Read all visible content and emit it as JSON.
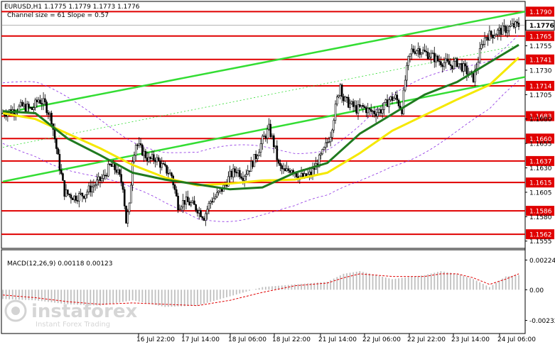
{
  "header": {
    "symbol_line": "EURUSD,H1  1.1775 1.1779 1.1773 1.1776",
    "channel_line": "Channel size = 61 Slope = 0.57"
  },
  "macd_label": "MACD(12,26,9) 0.00118 0.00123",
  "watermark": {
    "brand": "instaforex",
    "tagline": "Instant Forex Trading"
  },
  "colors": {
    "level_line": "#e00000",
    "channel": "#33dd33",
    "ma_fast": "#1f7a1f",
    "ma_slow": "#f5e800",
    "bollinger": "#8a2be2",
    "macd_signal": "#e00000",
    "macd_hist": "#c0c0c0",
    "candle": "#000000"
  },
  "chart_data": {
    "type": "candlestick",
    "symbol": "EURUSD",
    "timeframe": "H1",
    "ohlc_last": {
      "open": 1.1775,
      "high": 1.1779,
      "low": 1.1773,
      "close": 1.1776
    },
    "ylim": [
      1.1549,
      1.1799
    ],
    "y_ticks": [
      "1.1775",
      "1.1755",
      "1.1730",
      "1.1705",
      "1.1680",
      "1.1655",
      "1.1630",
      "1.1605",
      "1.1580",
      "1.1555"
    ],
    "x_ticks": [
      "16 Jul 22:00",
      "17 Jul 14:00",
      "18 Jul 06:00",
      "18 Jul 22:00",
      "21 Jul 14:00",
      "22 Jul 06:00",
      "22 Jul 22:00",
      "23 Jul 14:00",
      "24 Jul 06:00"
    ],
    "current_price": "1.1776",
    "levels": [
      "1.1790",
      "1.1765",
      "1.1741",
      "1.1714",
      "1.1683",
      "1.1660",
      "1.1637",
      "1.1615",
      "1.1586",
      "1.1562"
    ],
    "close_path": [
      [
        0,
        1.1686
      ],
      [
        6,
        1.1689
      ],
      [
        12,
        1.1693
      ],
      [
        18,
        1.169
      ],
      [
        22,
        1.17
      ],
      [
        26,
        1.1695
      ],
      [
        30,
        1.168
      ],
      [
        34,
        1.164
      ],
      [
        38,
        1.1605
      ],
      [
        44,
        1.16
      ],
      [
        50,
        1.1603
      ],
      [
        56,
        1.1612
      ],
      [
        62,
        1.162
      ],
      [
        66,
        1.1632
      ],
      [
        70,
        1.1628
      ],
      [
        74,
        1.1612
      ],
      [
        76,
        1.1575
      ],
      [
        78,
        1.159
      ],
      [
        80,
        1.164
      ],
      [
        82,
        1.1655
      ],
      [
        86,
        1.1647
      ],
      [
        90,
        1.1638
      ],
      [
        94,
        1.164
      ],
      [
        98,
        1.1632
      ],
      [
        104,
        1.1622
      ],
      [
        108,
        1.1592
      ],
      [
        112,
        1.1596
      ],
      [
        116,
        1.1593
      ],
      [
        120,
        1.1588
      ],
      [
        124,
        1.158
      ],
      [
        128,
        1.1596
      ],
      [
        132,
        1.1602
      ],
      [
        136,
        1.161
      ],
      [
        140,
        1.1622
      ],
      [
        144,
        1.1628
      ],
      [
        148,
        1.1622
      ],
      [
        152,
        1.163
      ],
      [
        156,
        1.1642
      ],
      [
        160,
        1.1658
      ],
      [
        164,
        1.167
      ],
      [
        166,
        1.166
      ],
      [
        168,
        1.1648
      ],
      [
        170,
        1.1632
      ],
      [
        174,
        1.1625
      ],
      [
        178,
        1.163
      ],
      [
        182,
        1.1622
      ],
      [
        186,
        1.162
      ],
      [
        190,
        1.1624
      ],
      [
        194,
        1.1635
      ],
      [
        198,
        1.1648
      ],
      [
        202,
        1.1665
      ],
      [
        206,
        1.17
      ],
      [
        208,
        1.1716
      ],
      [
        210,
        1.17
      ],
      [
        214,
        1.1695
      ],
      [
        218,
        1.169
      ],
      [
        222,
        1.1692
      ],
      [
        226,
        1.1688
      ],
      [
        230,
        1.1687
      ],
      [
        234,
        1.169
      ],
      [
        238,
        1.17
      ],
      [
        242,
        1.1702
      ],
      [
        246,
        1.169
      ],
      [
        248,
        1.172
      ],
      [
        250,
        1.174
      ],
      [
        252,
        1.175
      ],
      [
        256,
        1.1752
      ],
      [
        260,
        1.1748
      ],
      [
        264,
        1.1745
      ],
      [
        268,
        1.174
      ],
      [
        272,
        1.1738
      ],
      [
        276,
        1.1735
      ],
      [
        280,
        1.1738
      ],
      [
        284,
        1.1732
      ],
      [
        288,
        1.1725
      ],
      [
        290,
        1.1722
      ],
      [
        292,
        1.1733
      ],
      [
        294,
        1.1748
      ],
      [
        296,
        1.176
      ],
      [
        298,
        1.1765
      ],
      [
        302,
        1.1767
      ],
      [
        306,
        1.177
      ],
      [
        310,
        1.1772
      ],
      [
        314,
        1.1775
      ],
      [
        318,
        1.1776
      ]
    ],
    "channel": {
      "lower": [
        [
          0,
          1.1616
        ],
        [
          318,
          1.1722
        ]
      ],
      "upper": [
        [
          0,
          1.1686
        ],
        [
          318,
          1.1789
        ]
      ]
    },
    "series": [
      {
        "name": "",
        "values": [
          [
            0,
            1.1688
          ],
          [
            20,
            1.1686
          ],
          [
            40,
            1.166
          ],
          [
            60,
            1.1643
          ],
          [
            80,
            1.1625
          ],
          [
            100,
            1.1618
          ],
          [
            120,
            1.1613
          ],
          [
            140,
            1.1608
          ],
          [
            160,
            1.161
          ],
          [
            180,
            1.1625
          ],
          [
            200,
            1.1635
          ],
          [
            220,
            1.1665
          ],
          [
            240,
            1.1685
          ],
          [
            260,
            1.1705
          ],
          [
            280,
            1.1718
          ],
          [
            300,
            1.1738
          ],
          [
            318,
            1.1756
          ]
        ]
      },
      {
        "name": "",
        "values": [
          [
            0,
            1.1686
          ],
          [
            20,
            1.168
          ],
          [
            40,
            1.1665
          ],
          [
            60,
            1.165
          ],
          [
            80,
            1.1633
          ],
          [
            100,
            1.162
          ],
          [
            120,
            1.1612
          ],
          [
            140,
            1.1614
          ],
          [
            160,
            1.1617
          ],
          [
            180,
            1.1618
          ],
          [
            200,
            1.1625
          ],
          [
            220,
            1.1645
          ],
          [
            240,
            1.1668
          ],
          [
            260,
            1.1684
          ],
          [
            280,
            1.17
          ],
          [
            300,
            1.1715
          ],
          [
            318,
            1.1743
          ]
        ]
      }
    ],
    "macd": {
      "ylim": [
        -0.0032,
        0.0028
      ],
      "y_ticks": [
        "0.00224",
        "0.00",
        "-0.00232"
      ],
      "hist": [
        [
          0,
          -0.0007
        ],
        [
          20,
          -0.0008
        ],
        [
          40,
          -0.0011
        ],
        [
          60,
          -0.0012
        ],
        [
          80,
          -0.0008
        ],
        [
          100,
          -0.0013
        ],
        [
          120,
          -0.0012
        ],
        [
          140,
          -0.0005
        ],
        [
          160,
          0.0002
        ],
        [
          180,
          0.0004
        ],
        [
          200,
          0.0006
        ],
        [
          210,
          0.0012
        ],
        [
          220,
          0.0014
        ],
        [
          240,
          0.0008
        ],
        [
          260,
          0.0011
        ],
        [
          270,
          0.0014
        ],
        [
          280,
          0.0012
        ],
        [
          290,
          0.0008
        ],
        [
          300,
          0.0002
        ],
        [
          310,
          0.001
        ],
        [
          318,
          0.0011
        ]
      ],
      "signal": [
        [
          0,
          -0.0004
        ],
        [
          20,
          -0.0006
        ],
        [
          40,
          -0.0009
        ],
        [
          60,
          -0.0011
        ],
        [
          80,
          -0.001
        ],
        [
          100,
          -0.0011
        ],
        [
          120,
          -0.0012
        ],
        [
          140,
          -0.0008
        ],
        [
          160,
          -0.0002
        ],
        [
          180,
          0.0003
        ],
        [
          200,
          0.0005
        ],
        [
          210,
          0.0009
        ],
        [
          220,
          0.0012
        ],
        [
          240,
          0.001
        ],
        [
          260,
          0.001
        ],
        [
          270,
          0.0012
        ],
        [
          280,
          0.0012
        ],
        [
          290,
          0.0009
        ],
        [
          300,
          0.0004
        ],
        [
          310,
          0.0008
        ],
        [
          318,
          0.0012
        ]
      ]
    }
  }
}
